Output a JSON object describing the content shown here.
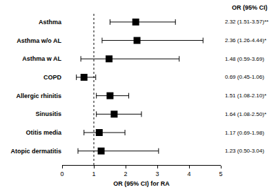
{
  "chart_data": {
    "type": "forest",
    "x_label": "OR (95% CI) for RA",
    "labels_header": "OR (95% CI)",
    "categories": [
      "Asthma",
      "Asthma w/o AL",
      "Asthma w AL",
      "COPD",
      "Allergic rhinitis",
      "Sinusitis",
      "Otitis media",
      "Atopic dermatitis"
    ],
    "values": [
      2.32,
      2.36,
      1.48,
      0.69,
      1.51,
      1.64,
      1.17,
      1.23
    ],
    "ci_lower": [
      1.51,
      1.26,
      0.59,
      0.45,
      1.08,
      1.08,
      0.69,
      0.5
    ],
    "ci_upper": [
      3.57,
      4.44,
      3.69,
      1.06,
      2.1,
      2.5,
      1.98,
      3.04
    ],
    "value_labels": [
      "2.32 (1.51-3.57)**",
      "2.36 (1.26-4.44)*",
      "1.48 (0.59-3.69)",
      "0.69 (0.45-1.06)",
      "1.51 (1.08-2.10)*",
      "1.64 (1.08-2.50)*",
      "1.17 (0.69-1.98)",
      "1.23 (0.50-3.04)"
    ],
    "data_labels": true,
    "reference_line": 1,
    "xlim": [
      0,
      5
    ],
    "xticks": [
      0,
      1,
      2,
      3,
      4,
      5
    ],
    "color": "#000000",
    "marker": "square",
    "grid": false
  }
}
